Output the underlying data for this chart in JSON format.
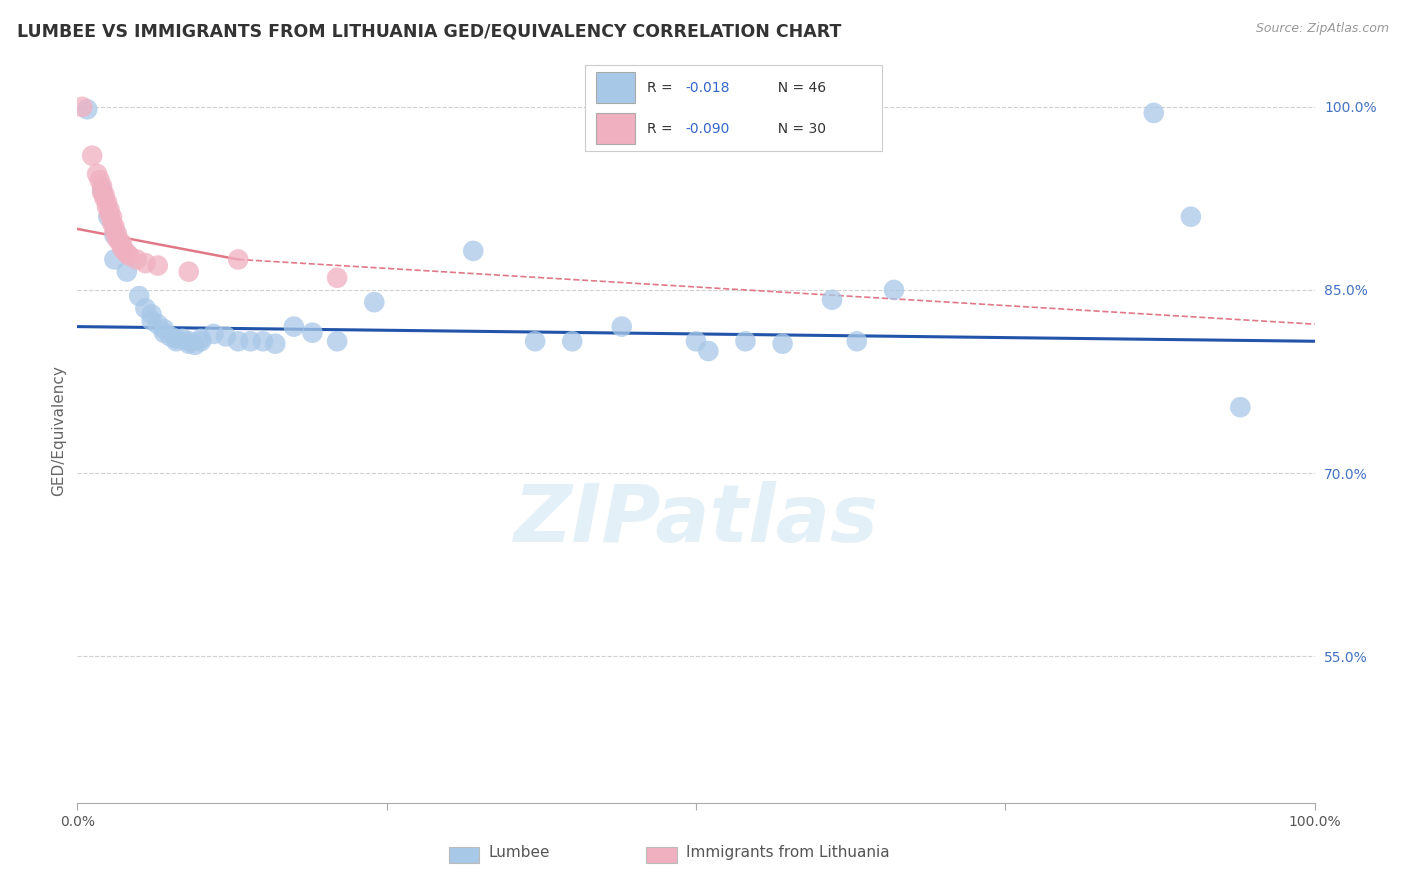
{
  "title": "LUMBEE VS IMMIGRANTS FROM LITHUANIA GED/EQUIVALENCY CORRELATION CHART",
  "source": "Source: ZipAtlas.com",
  "ylabel": "GED/Equivalency",
  "legend_blue_r": "R =  -0.018",
  "legend_blue_n": "N = 46",
  "legend_pink_r": "R = -0.090",
  "legend_pink_n": "N = 30",
  "legend_label_blue": "Lumbee",
  "legend_label_pink": "Immigrants from Lithuania",
  "xlim": [
    0.0,
    1.0
  ],
  "ylim": [
    0.43,
    1.04
  ],
  "blue_color": "#a8c8e8",
  "pink_color": "#f0b0c0",
  "blue_line_color": "#2255aa",
  "pink_line_color": "#e07888",
  "blue_dots": [
    [
      0.008,
      0.998
    ],
    [
      0.02,
      0.932
    ],
    [
      0.025,
      0.91
    ],
    [
      0.03,
      0.895
    ],
    [
      0.03,
      0.875
    ],
    [
      0.04,
      0.865
    ],
    [
      0.05,
      0.845
    ],
    [
      0.055,
      0.835
    ],
    [
      0.06,
      0.83
    ],
    [
      0.06,
      0.825
    ],
    [
      0.065,
      0.822
    ],
    [
      0.07,
      0.818
    ],
    [
      0.07,
      0.815
    ],
    [
      0.075,
      0.812
    ],
    [
      0.08,
      0.81
    ],
    [
      0.08,
      0.808
    ],
    [
      0.085,
      0.81
    ],
    [
      0.09,
      0.808
    ],
    [
      0.09,
      0.806
    ],
    [
      0.095,
      0.805
    ],
    [
      0.1,
      0.81
    ],
    [
      0.1,
      0.808
    ],
    [
      0.11,
      0.814
    ],
    [
      0.12,
      0.812
    ],
    [
      0.13,
      0.808
    ],
    [
      0.14,
      0.808
    ],
    [
      0.15,
      0.808
    ],
    [
      0.16,
      0.806
    ],
    [
      0.175,
      0.82
    ],
    [
      0.19,
      0.815
    ],
    [
      0.21,
      0.808
    ],
    [
      0.24,
      0.84
    ],
    [
      0.32,
      0.882
    ],
    [
      0.37,
      0.808
    ],
    [
      0.4,
      0.808
    ],
    [
      0.44,
      0.82
    ],
    [
      0.5,
      0.808
    ],
    [
      0.51,
      0.8
    ],
    [
      0.54,
      0.808
    ],
    [
      0.57,
      0.806
    ],
    [
      0.61,
      0.842
    ],
    [
      0.63,
      0.808
    ],
    [
      0.66,
      0.85
    ],
    [
      0.87,
      0.995
    ],
    [
      0.9,
      0.91
    ],
    [
      0.94,
      0.754
    ]
  ],
  "pink_dots": [
    [
      0.004,
      1.0
    ],
    [
      0.012,
      0.96
    ],
    [
      0.016,
      0.945
    ],
    [
      0.018,
      0.94
    ],
    [
      0.02,
      0.935
    ],
    [
      0.02,
      0.93
    ],
    [
      0.022,
      0.928
    ],
    [
      0.022,
      0.925
    ],
    [
      0.024,
      0.922
    ],
    [
      0.024,
      0.918
    ],
    [
      0.026,
      0.916
    ],
    [
      0.026,
      0.912
    ],
    [
      0.028,
      0.91
    ],
    [
      0.028,
      0.905
    ],
    [
      0.03,
      0.902
    ],
    [
      0.03,
      0.898
    ],
    [
      0.032,
      0.896
    ],
    [
      0.032,
      0.892
    ],
    [
      0.034,
      0.89
    ],
    [
      0.036,
      0.888
    ],
    [
      0.036,
      0.885
    ],
    [
      0.038,
      0.882
    ],
    [
      0.04,
      0.88
    ],
    [
      0.042,
      0.878
    ],
    [
      0.048,
      0.875
    ],
    [
      0.055,
      0.872
    ],
    [
      0.065,
      0.87
    ],
    [
      0.09,
      0.865
    ],
    [
      0.13,
      0.875
    ],
    [
      0.21,
      0.86
    ]
  ],
  "blue_trend": [
    0.0,
    0.82,
    1.0,
    0.808
  ],
  "pink_trend_solid": [
    0.0,
    0.9,
    0.13,
    0.875
  ],
  "pink_trend_dashed": [
    0.13,
    0.875,
    1.0,
    0.822
  ],
  "ytick_vals": [
    0.55,
    0.7,
    0.85,
    1.0
  ],
  "ytick_labels": [
    "55.0%",
    "70.0%",
    "85.0%",
    "100.0%"
  ],
  "watermark": "ZIPatlas",
  "bg_color": "#ffffff",
  "grid_color": "#d0d0d0",
  "grid_style": "--"
}
